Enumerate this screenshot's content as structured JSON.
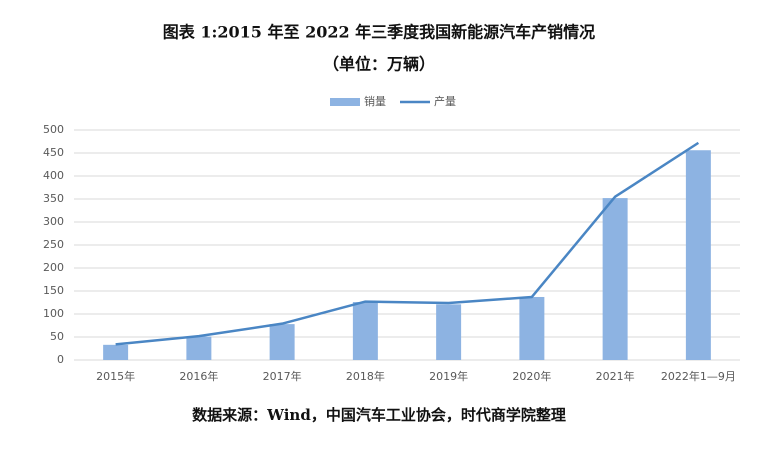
{
  "chart_data": {
    "type": "bar",
    "title": "图表 1:2015 年至 2022 年三季度我国新能源汽车产销情况",
    "subtitle": "（单位：万辆）",
    "source": "数据来源：Wind，中国汽车工业协会，时代商学院整理",
    "categories": [
      "2015年",
      "2016年",
      "2017年",
      "2018年",
      "2019年",
      "2020年",
      "2021年",
      "2022年1—9月"
    ],
    "series": [
      {
        "name": "销量",
        "type": "bar",
        "color": "#8db3e2",
        "values": [
          33,
          51,
          78,
          126,
          121,
          137,
          352,
          456
        ]
      },
      {
        "name": "产量",
        "type": "line",
        "color": "#4a86c4",
        "values": [
          34,
          52,
          79,
          127,
          124,
          137,
          355,
          472
        ]
      }
    ],
    "ylim": [
      0,
      500
    ],
    "yticks": [
      0,
      50,
      100,
      150,
      200,
      250,
      300,
      350,
      400,
      450,
      500
    ],
    "grid": true,
    "legend": "top"
  }
}
